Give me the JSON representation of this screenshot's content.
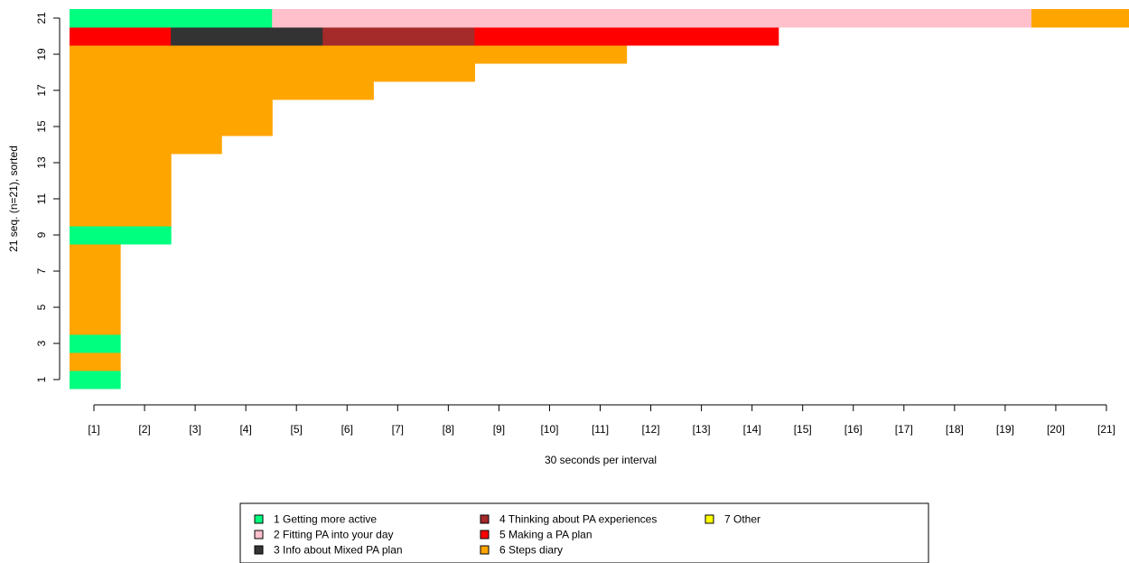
{
  "chart_data": {
    "type": "heatmap",
    "title": "",
    "xlabel": "30 seconds per interval",
    "ylabel": "21 seq. (n=21), sorted",
    "x_ticks": [
      "[1]",
      "[2]",
      "[3]",
      "[4]",
      "[5]",
      "[6]",
      "[7]",
      "[8]",
      "[9]",
      "[10]",
      "[11]",
      "[12]",
      "[13]",
      "[14]",
      "[15]",
      "[16]",
      "[17]",
      "[18]",
      "[19]",
      "[20]",
      "[21]"
    ],
    "y_ticks": [
      "1",
      "3",
      "5",
      "7",
      "9",
      "11",
      "13",
      "15",
      "17",
      "19",
      "21"
    ],
    "xlim": [
      1,
      21
    ],
    "ylim": [
      1,
      21
    ],
    "grid": false,
    "legend_position": "bottom",
    "states": [
      {
        "code": 1,
        "label": "1 Getting more active",
        "color": "#00FF7F"
      },
      {
        "code": 2,
        "label": "2 Fitting PA into your day",
        "color": "#FFC0CB"
      },
      {
        "code": 3,
        "label": "3 Info about Mixed PA plan",
        "color": "#333333"
      },
      {
        "code": 4,
        "label": "4 Thinking about PA experiences",
        "color": "#A52A2A"
      },
      {
        "code": 5,
        "label": "5 Making a PA plan",
        "color": "#FF0000"
      },
      {
        "code": 6,
        "label": "6 Steps diary",
        "color": "#FFA500"
      },
      {
        "code": 7,
        "label": "7 Other",
        "color": "#FFFF00"
      }
    ],
    "sequences": [
      [
        1
      ],
      [
        6
      ],
      [
        1
      ],
      [
        6
      ],
      [
        6
      ],
      [
        6
      ],
      [
        6
      ],
      [
        6
      ],
      [
        1,
        1
      ],
      [
        6,
        6
      ],
      [
        6,
        6
      ],
      [
        6,
        6
      ],
      [
        6,
        6
      ],
      [
        6,
        6,
        6
      ],
      [
        6,
        6,
        6,
        6
      ],
      [
        6,
        6,
        6,
        6
      ],
      [
        6,
        6,
        6,
        6,
        6,
        6
      ],
      [
        6,
        6,
        6,
        6,
        6,
        6,
        6,
        6
      ],
      [
        6,
        6,
        6,
        6,
        6,
        6,
        6,
        6,
        6,
        6,
        6
      ],
      [
        5,
        5,
        3,
        3,
        3,
        4,
        4,
        4,
        5,
        5,
        5,
        5,
        5,
        5
      ],
      [
        1,
        1,
        1,
        1,
        2,
        2,
        2,
        2,
        2,
        2,
        2,
        2,
        2,
        2,
        2,
        2,
        2,
        2,
        2,
        6,
        6,
        6
      ]
    ]
  }
}
